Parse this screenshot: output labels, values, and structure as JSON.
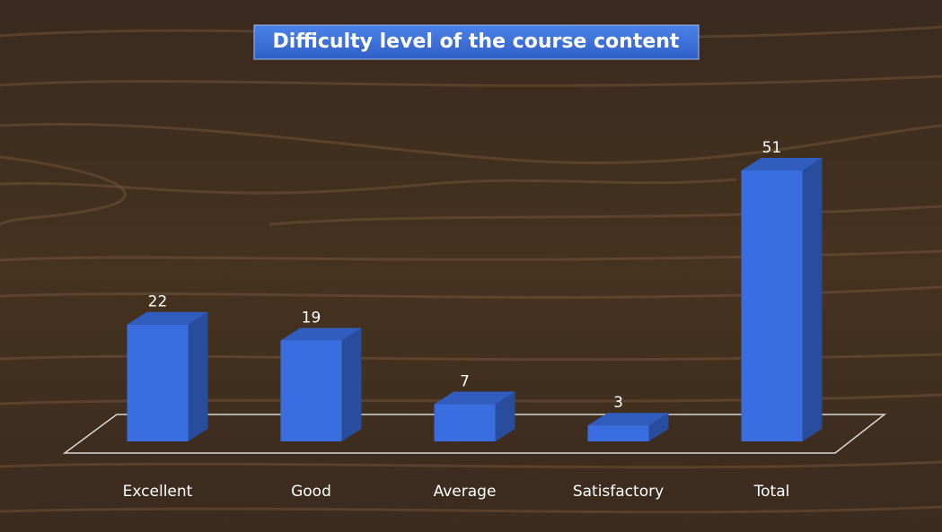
{
  "chart_data": {
    "type": "bar3d",
    "title": "Difficulty level of the course content",
    "categories": [
      "Excellent",
      "Good",
      "Average",
      "Satisfactory",
      "Total"
    ],
    "values": [
      22,
      19,
      7,
      3,
      51
    ],
    "color": "#3a6ee0"
  }
}
